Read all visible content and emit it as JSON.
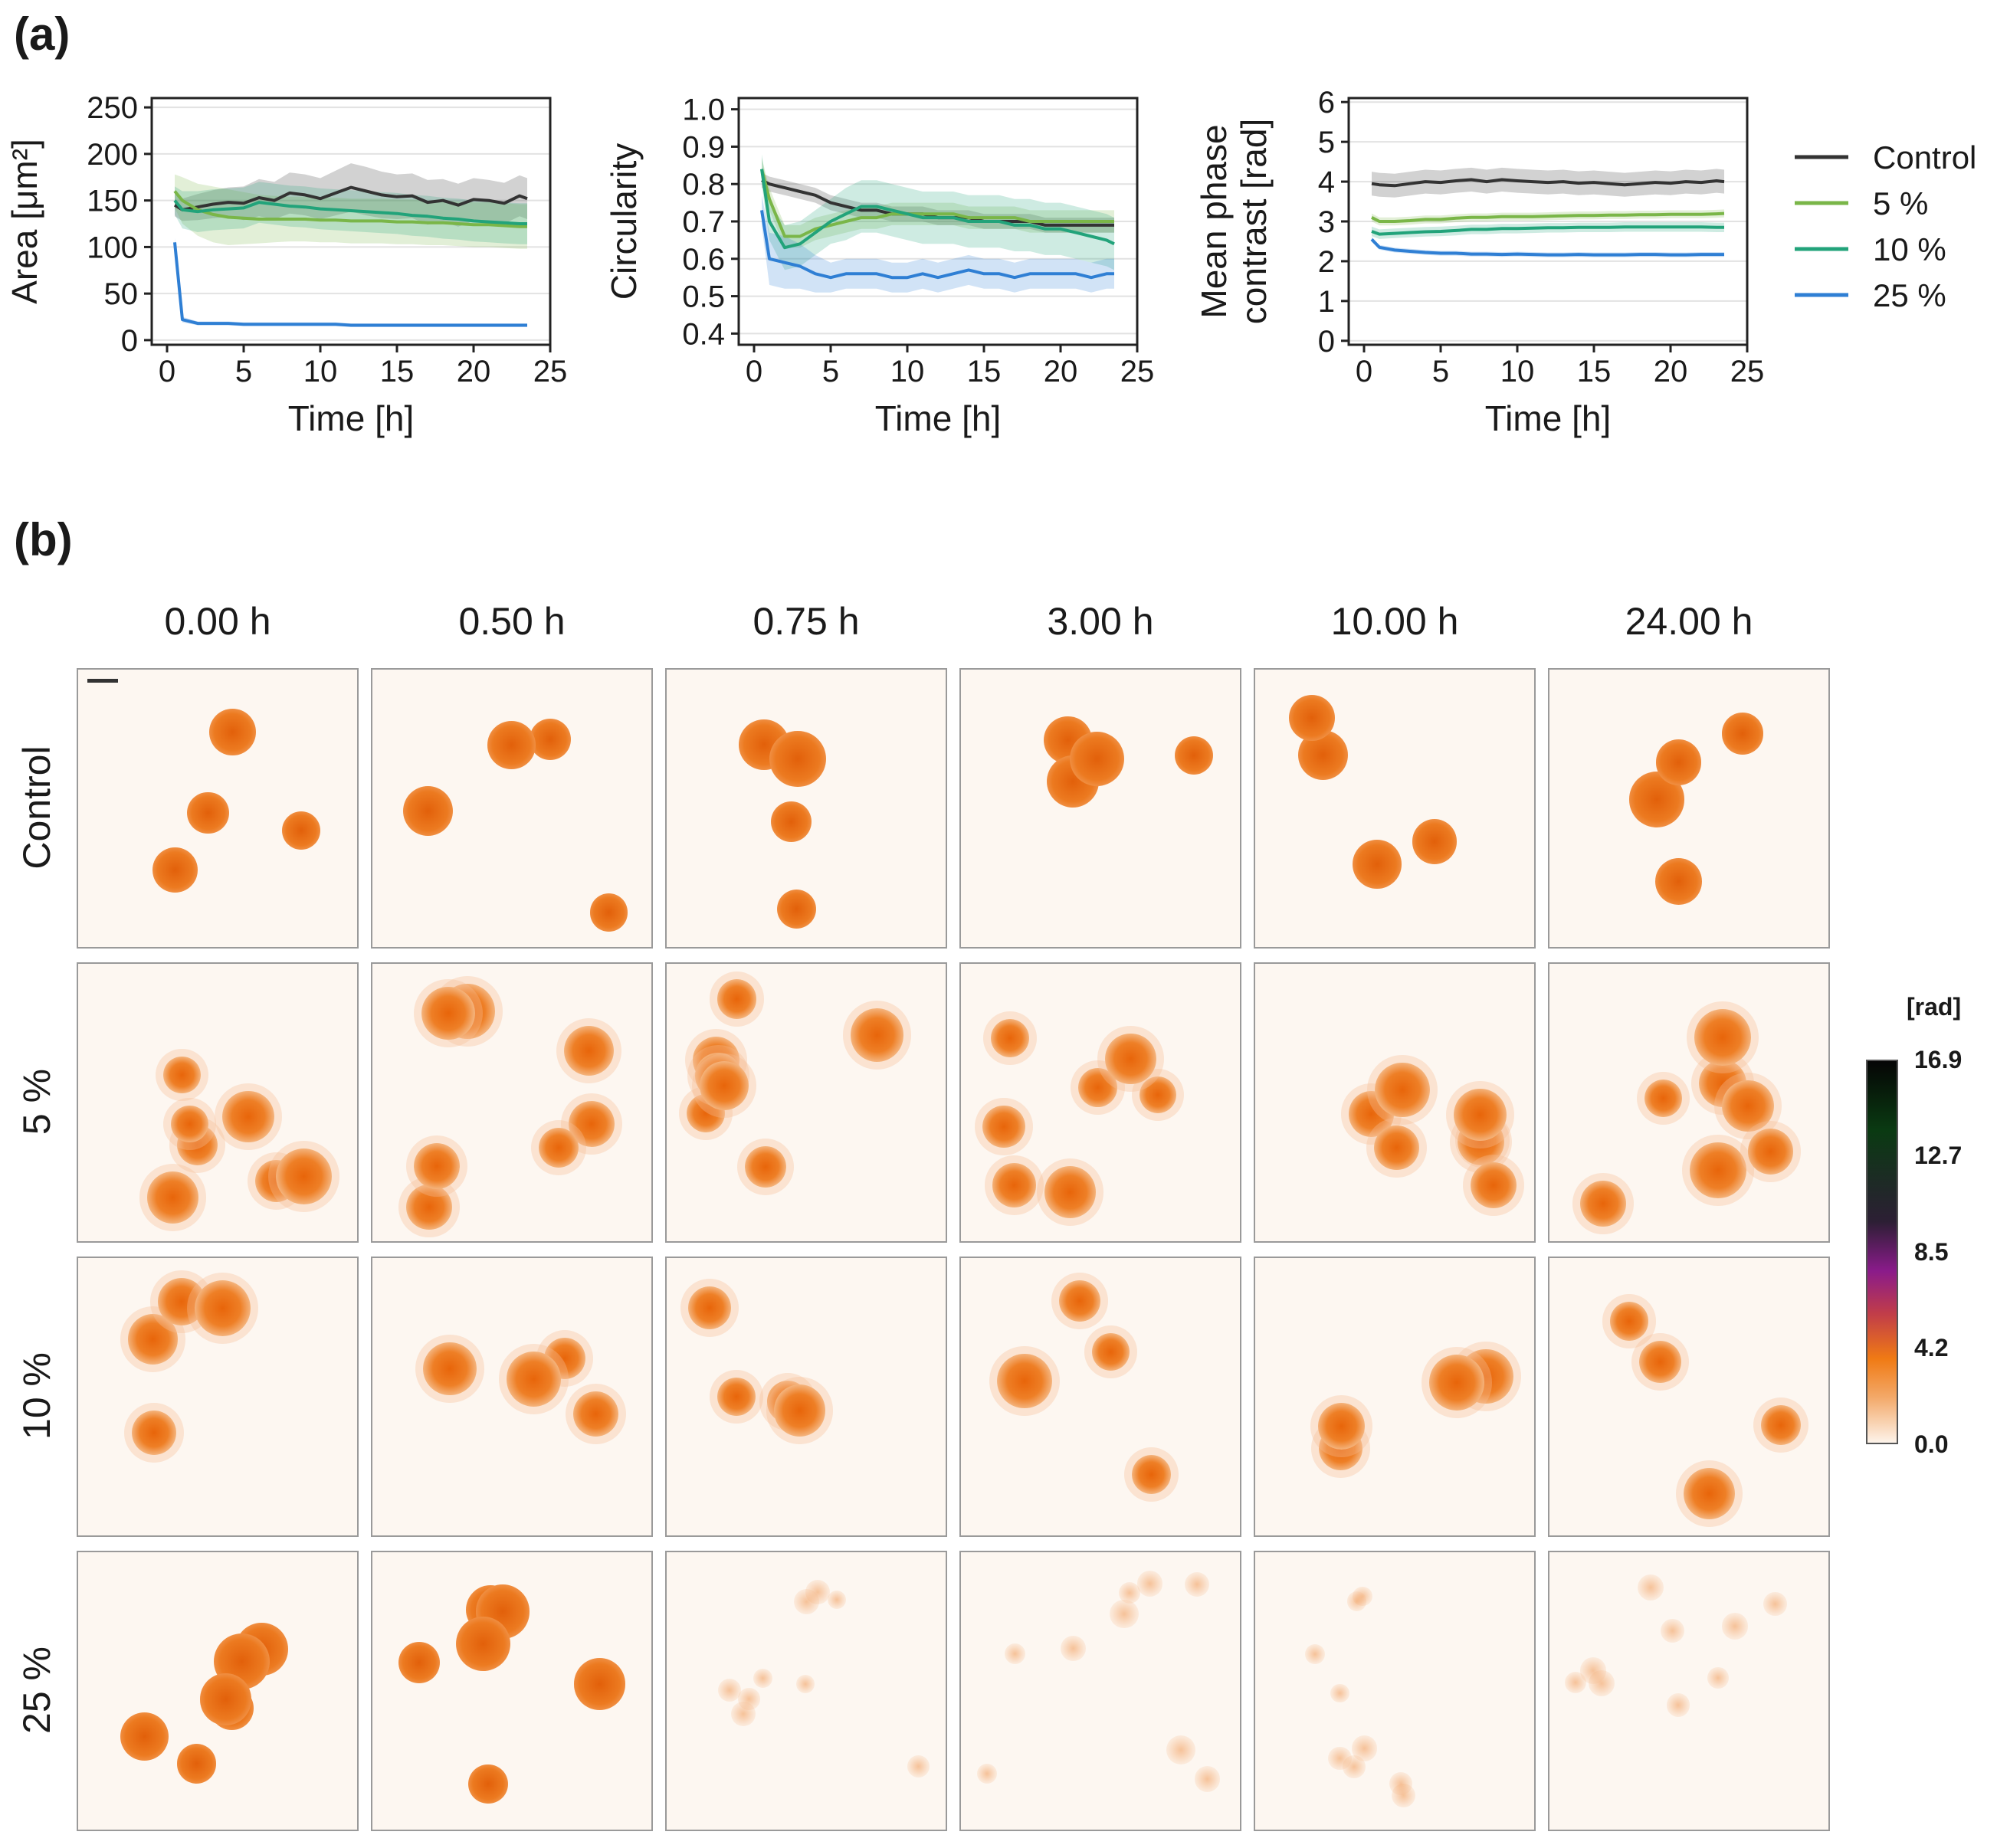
{
  "panel_labels": {
    "a": "(a)",
    "b": "(b)"
  },
  "chart_data": [
    {
      "type": "line",
      "title": "",
      "xlabel": "Time [h]",
      "ylabel": "Area [μm²]",
      "xlim": [
        -1,
        25
      ],
      "ylim": [
        -5,
        260
      ],
      "xticks": [
        0,
        5,
        10,
        15,
        20,
        25
      ],
      "xtick_labels": [
        "0",
        "5",
        "10",
        "15",
        "20",
        "25"
      ],
      "yticks": [
        0,
        50,
        100,
        150,
        200,
        250
      ],
      "ytick_labels": [
        "0",
        "50",
        "100",
        "150",
        "200",
        "250"
      ],
      "grid": true,
      "x": [
        0.5,
        1,
        2,
        3,
        4,
        5,
        6,
        7,
        8,
        9,
        10,
        11,
        12,
        13,
        14,
        15,
        16,
        17,
        18,
        19,
        20,
        21,
        22,
        23,
        23.5
      ],
      "series": [
        {
          "name": "Control",
          "color": "#333333",
          "values": [
            145,
            140,
            143,
            146,
            148,
            147,
            153,
            150,
            158,
            156,
            152,
            158,
            164,
            160,
            156,
            154,
            155,
            148,
            150,
            145,
            151,
            150,
            147,
            155,
            152
          ],
          "band": [
            12,
            12,
            14,
            15,
            16,
            18,
            20,
            20,
            22,
            22,
            22,
            24,
            26,
            26,
            25,
            24,
            24,
            24,
            23,
            23,
            23,
            22,
            22,
            22,
            22
          ]
        },
        {
          "name": "5 %",
          "color": "#7ab648",
          "values": [
            160,
            150,
            140,
            135,
            132,
            131,
            130,
            130,
            130,
            130,
            129,
            129,
            128,
            128,
            128,
            127,
            127,
            126,
            126,
            125,
            124,
            124,
            123,
            122,
            122
          ],
          "band": [
            18,
            25,
            28,
            30,
            30,
            28,
            26,
            25,
            24,
            24,
            24,
            24,
            24,
            24,
            24,
            24,
            24,
            24,
            24,
            24,
            24,
            24,
            24,
            24,
            24
          ]
        },
        {
          "name": "10 %",
          "color": "#22a37a",
          "values": [
            150,
            140,
            138,
            140,
            141,
            142,
            148,
            146,
            144,
            143,
            141,
            140,
            139,
            138,
            137,
            136,
            134,
            133,
            131,
            130,
            128,
            127,
            126,
            125,
            125
          ],
          "band": [
            15,
            20,
            22,
            22,
            22,
            22,
            22,
            22,
            22,
            22,
            22,
            22,
            22,
            22,
            22,
            22,
            22,
            22,
            22,
            22,
            22,
            22,
            22,
            22,
            22
          ]
        },
        {
          "name": "25 %",
          "color": "#2f7fd4",
          "values": [
            105,
            22,
            18,
            18,
            18,
            17,
            17,
            17,
            17,
            17,
            17,
            17,
            16,
            16,
            16,
            16,
            16,
            16,
            16,
            16,
            16,
            16,
            16,
            16,
            16
          ],
          "band": [
            5,
            3,
            2,
            2,
            2,
            2,
            2,
            2,
            2,
            2,
            2,
            2,
            2,
            2,
            2,
            2,
            2,
            2,
            2,
            2,
            2,
            2,
            2,
            2,
            2
          ]
        }
      ]
    },
    {
      "type": "line",
      "title": "",
      "xlabel": "Time [h]",
      "ylabel": "Circularity",
      "xlim": [
        -1,
        25
      ],
      "ylim": [
        0.37,
        1.03
      ],
      "xticks": [
        0,
        5,
        10,
        15,
        20,
        25
      ],
      "xtick_labels": [
        "0",
        "5",
        "10",
        "15",
        "20",
        "25"
      ],
      "yticks": [
        0.4,
        0.5,
        0.6,
        0.7,
        0.8,
        0.9,
        1.0
      ],
      "ytick_labels": [
        "0.4",
        "0.5",
        "0.6",
        "0.7",
        "0.8",
        "0.9",
        "1.0"
      ],
      "grid": true,
      "x": [
        0.5,
        1,
        2,
        3,
        4,
        5,
        6,
        7,
        8,
        9,
        10,
        11,
        12,
        13,
        14,
        15,
        16,
        17,
        18,
        19,
        20,
        21,
        22,
        23,
        23.5
      ],
      "series": [
        {
          "name": "Control",
          "color": "#333333",
          "values": [
            0.81,
            0.8,
            0.79,
            0.78,
            0.77,
            0.75,
            0.74,
            0.73,
            0.73,
            0.72,
            0.72,
            0.72,
            0.71,
            0.71,
            0.71,
            0.7,
            0.7,
            0.7,
            0.7,
            0.69,
            0.69,
            0.69,
            0.69,
            0.69,
            0.69
          ],
          "band": [
            0.02,
            0.02,
            0.02,
            0.02,
            0.02,
            0.02,
            0.02,
            0.02,
            0.02,
            0.02,
            0.02,
            0.02,
            0.02,
            0.02,
            0.02,
            0.02,
            0.02,
            0.02,
            0.02,
            0.02,
            0.02,
            0.02,
            0.02,
            0.02,
            0.02
          ]
        },
        {
          "name": "5 %",
          "color": "#7ab648",
          "values": [
            0.84,
            0.76,
            0.66,
            0.66,
            0.68,
            0.69,
            0.7,
            0.71,
            0.71,
            0.72,
            0.72,
            0.72,
            0.72,
            0.72,
            0.71,
            0.71,
            0.71,
            0.71,
            0.7,
            0.7,
            0.7,
            0.7,
            0.7,
            0.7,
            0.7
          ],
          "band": [
            0.03,
            0.03,
            0.03,
            0.03,
            0.03,
            0.03,
            0.03,
            0.03,
            0.03,
            0.03,
            0.03,
            0.03,
            0.03,
            0.03,
            0.03,
            0.03,
            0.03,
            0.03,
            0.03,
            0.03,
            0.03,
            0.03,
            0.03,
            0.03,
            0.03
          ]
        },
        {
          "name": "10 %",
          "color": "#22a37a",
          "values": [
            0.84,
            0.7,
            0.63,
            0.64,
            0.67,
            0.7,
            0.72,
            0.74,
            0.74,
            0.73,
            0.72,
            0.71,
            0.71,
            0.71,
            0.7,
            0.7,
            0.7,
            0.69,
            0.69,
            0.68,
            0.68,
            0.67,
            0.66,
            0.65,
            0.64
          ],
          "band": [
            0.04,
            0.05,
            0.06,
            0.06,
            0.06,
            0.06,
            0.07,
            0.07,
            0.07,
            0.07,
            0.07,
            0.07,
            0.07,
            0.07,
            0.07,
            0.07,
            0.07,
            0.07,
            0.07,
            0.07,
            0.07,
            0.07,
            0.07,
            0.07,
            0.07
          ]
        },
        {
          "name": "25 %",
          "color": "#2f7fd4",
          "values": [
            0.73,
            0.6,
            0.59,
            0.58,
            0.56,
            0.55,
            0.56,
            0.56,
            0.56,
            0.55,
            0.55,
            0.56,
            0.55,
            0.56,
            0.57,
            0.56,
            0.56,
            0.55,
            0.56,
            0.56,
            0.56,
            0.56,
            0.55,
            0.56,
            0.56
          ],
          "band": [
            0.04,
            0.07,
            0.07,
            0.06,
            0.05,
            0.04,
            0.04,
            0.04,
            0.04,
            0.04,
            0.04,
            0.04,
            0.04,
            0.04,
            0.04,
            0.04,
            0.04,
            0.04,
            0.04,
            0.04,
            0.04,
            0.04,
            0.04,
            0.04,
            0.04
          ]
        }
      ]
    },
    {
      "type": "line",
      "title": "",
      "xlabel": "Time [h]",
      "ylabel": [
        "Mean phase",
        "contrast [rad]"
      ],
      "xlim": [
        -1,
        25
      ],
      "ylim": [
        -0.1,
        6.1
      ],
      "xticks": [
        0,
        5,
        10,
        15,
        20,
        25
      ],
      "xtick_labels": [
        "0",
        "5",
        "10",
        "15",
        "20",
        "25"
      ],
      "yticks": [
        0,
        1,
        2,
        3,
        4,
        5,
        6
      ],
      "ytick_labels": [
        "0",
        "1",
        "2",
        "3",
        "4",
        "5",
        "6"
      ],
      "grid": true,
      "x": [
        0.5,
        1,
        2,
        3,
        4,
        5,
        6,
        7,
        8,
        9,
        10,
        11,
        12,
        13,
        14,
        15,
        16,
        17,
        18,
        19,
        20,
        21,
        22,
        23,
        23.5
      ],
      "series": [
        {
          "name": "Control",
          "color": "#333333",
          "values": [
            3.95,
            3.92,
            3.9,
            3.95,
            4.0,
            3.98,
            4.02,
            4.05,
            4.0,
            4.05,
            4.02,
            4.0,
            3.98,
            4.0,
            3.96,
            3.98,
            3.95,
            3.92,
            3.95,
            3.98,
            3.96,
            4.0,
            3.98,
            4.02,
            4.0
          ],
          "band": [
            0.3,
            0.3,
            0.3,
            0.3,
            0.3,
            0.3,
            0.3,
            0.3,
            0.3,
            0.3,
            0.3,
            0.3,
            0.3,
            0.3,
            0.3,
            0.3,
            0.3,
            0.3,
            0.3,
            0.3,
            0.3,
            0.3,
            0.3,
            0.3,
            0.3
          ]
        },
        {
          "name": "5 %",
          "color": "#7ab648",
          "values": [
            3.1,
            3.0,
            3.0,
            3.02,
            3.05,
            3.05,
            3.08,
            3.1,
            3.1,
            3.12,
            3.12,
            3.12,
            3.13,
            3.14,
            3.15,
            3.15,
            3.16,
            3.16,
            3.17,
            3.17,
            3.18,
            3.18,
            3.18,
            3.19,
            3.2
          ],
          "band": [
            0.1,
            0.1,
            0.1,
            0.1,
            0.1,
            0.1,
            0.1,
            0.1,
            0.1,
            0.1,
            0.1,
            0.1,
            0.1,
            0.1,
            0.1,
            0.1,
            0.1,
            0.1,
            0.1,
            0.1,
            0.1,
            0.1,
            0.1,
            0.1,
            0.1
          ]
        },
        {
          "name": "10 %",
          "color": "#22a37a",
          "values": [
            2.75,
            2.68,
            2.7,
            2.72,
            2.74,
            2.75,
            2.77,
            2.8,
            2.8,
            2.82,
            2.82,
            2.83,
            2.84,
            2.84,
            2.85,
            2.85,
            2.85,
            2.86,
            2.86,
            2.86,
            2.86,
            2.86,
            2.86,
            2.85,
            2.85
          ],
          "band": [
            0.12,
            0.12,
            0.12,
            0.12,
            0.12,
            0.12,
            0.12,
            0.12,
            0.12,
            0.12,
            0.12,
            0.12,
            0.12,
            0.12,
            0.12,
            0.12,
            0.12,
            0.12,
            0.12,
            0.12,
            0.12,
            0.12,
            0.12,
            0.12,
            0.12
          ]
        },
        {
          "name": "25 %",
          "color": "#2f7fd4",
          "values": [
            2.55,
            2.35,
            2.28,
            2.25,
            2.22,
            2.2,
            2.2,
            2.18,
            2.18,
            2.17,
            2.18,
            2.17,
            2.16,
            2.16,
            2.17,
            2.16,
            2.16,
            2.16,
            2.17,
            2.17,
            2.16,
            2.16,
            2.17,
            2.17,
            2.17
          ],
          "band": [
            0.06,
            0.06,
            0.06,
            0.06,
            0.06,
            0.06,
            0.06,
            0.06,
            0.06,
            0.06,
            0.06,
            0.06,
            0.06,
            0.06,
            0.06,
            0.06,
            0.06,
            0.06,
            0.06,
            0.06,
            0.06,
            0.06,
            0.06,
            0.06,
            0.06
          ]
        }
      ]
    }
  ],
  "legend": [
    {
      "name": "Control",
      "color": "#333333"
    },
    {
      "name": "5 %",
      "color": "#7ab648"
    },
    {
      "name": "10 %",
      "color": "#22a37a"
    },
    {
      "name": "25 %",
      "color": "#2f7fd4"
    }
  ],
  "image_grid": {
    "timepoints": [
      "0.00 h",
      "0.50 h",
      "0.75 h",
      "3.00 h",
      "10.00 h",
      "24.00 h"
    ],
    "conditions": [
      "Control",
      "5 %",
      "10 %",
      "25 %"
    ]
  },
  "colorbar": {
    "unit": "[rad]",
    "ticks": [
      "16.9",
      "12.7",
      "8.5",
      "4.2",
      "0.0"
    ]
  }
}
